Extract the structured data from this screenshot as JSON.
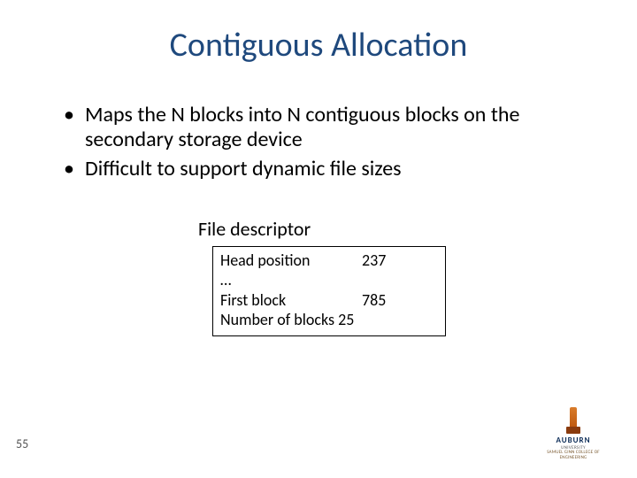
{
  "title": "Contiguous Allocation",
  "bullets": [
    "Maps the N blocks into N contiguous blocks on the secondary storage device",
    "Difficult to support dynamic file sizes"
  ],
  "file_descriptor": {
    "label": "File descriptor",
    "rows": [
      {
        "key": "Head position",
        "val": "237"
      },
      {
        "key": "…",
        "val": ""
      },
      {
        "key": "First block",
        "val": "785"
      },
      {
        "key": "Number of blocks 25",
        "val": ""
      }
    ],
    "border_color": "#000000",
    "font_size": 18
  },
  "page_number": "55",
  "logo": {
    "name": "AUBURN",
    "sub1": "UNIVERSITY",
    "sub2": "SAMUEL GINN COLLEGE OF ENGINEERING",
    "tower_color": "#d97c2b",
    "name_color": "#0a2a56"
  },
  "colors": {
    "title": "#1f497d",
    "text": "#000000",
    "background": "#ffffff"
  }
}
